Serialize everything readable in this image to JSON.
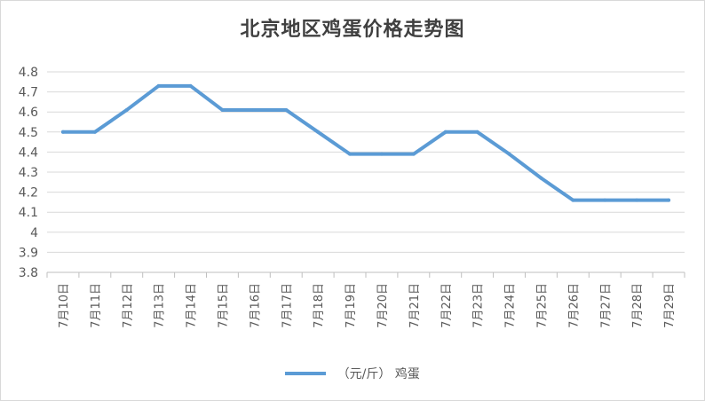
{
  "chart_data": {
    "type": "line",
    "title": "北京地区鸡蛋价格走势图",
    "categories": [
      "7月10日",
      "7月11日",
      "7月12日",
      "7月13日",
      "7月14日",
      "7月15日",
      "7月16日",
      "7月17日",
      "7月18日",
      "7月19日",
      "7月20日",
      "7月21日",
      "7月22日",
      "7月23日",
      "7月24日",
      "7月25日",
      "7月26日",
      "7月27日",
      "7月28日",
      "7月29日"
    ],
    "series": [
      {
        "name": "（元/斤） 鸡蛋",
        "values": [
          4.5,
          4.5,
          4.61,
          4.73,
          4.73,
          4.61,
          4.61,
          4.61,
          4.5,
          4.39,
          4.39,
          4.39,
          4.5,
          4.5,
          4.39,
          4.27,
          4.16,
          4.16,
          4.16,
          4.16
        ],
        "color": "#5b9bd5"
      }
    ],
    "ylim": [
      3.8,
      4.8
    ],
    "yticks": [
      "3.8",
      "3.9",
      "4",
      "4.1",
      "4.2",
      "4.3",
      "4.4",
      "4.5",
      "4.6",
      "4.7",
      "4.8"
    ],
    "grid": true,
    "legend": "bottom",
    "xlabel": "",
    "ylabel": ""
  }
}
